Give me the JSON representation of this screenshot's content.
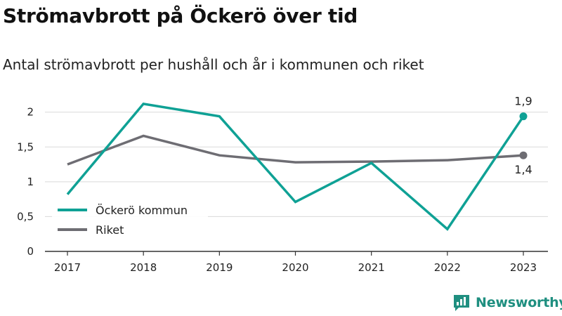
{
  "title": "Strömavbrott på Öckerö över tid",
  "subtitle": "Antal strömavbrott per hushåll och år i kommunen och riket",
  "brand": {
    "name": "Newsworthy"
  },
  "colors": {
    "kommun": "#0fa195",
    "riket": "#6e6d73",
    "grid": "#d9d9d9",
    "axis": "#333333"
  },
  "chart_data": {
    "type": "line",
    "x": [
      "2017",
      "2018",
      "2019",
      "2020",
      "2021",
      "2022",
      "2023"
    ],
    "ylim": [
      0,
      2.3
    ],
    "yticks": [
      0,
      0.5,
      1,
      1.5,
      2
    ],
    "ytick_labels": [
      "0",
      "0,5",
      "1",
      "1,5",
      "2"
    ],
    "grid": true,
    "legend": "bottom-left",
    "series": [
      {
        "name": "Öckerö kommun",
        "color": "#0fa195",
        "values": [
          0.82,
          2.12,
          1.94,
          0.71,
          1.27,
          0.32,
          1.94
        ]
      },
      {
        "name": "Riket",
        "color": "#6e6d73",
        "values": [
          1.25,
          1.66,
          1.38,
          1.28,
          1.29,
          1.31,
          1.38
        ]
      }
    ],
    "annotations": [
      {
        "series": "Öckerö kommun",
        "x": "2023",
        "label": "1,9",
        "position": "above"
      },
      {
        "series": "Riket",
        "x": "2023",
        "label": "1,4",
        "position": "below"
      }
    ]
  }
}
